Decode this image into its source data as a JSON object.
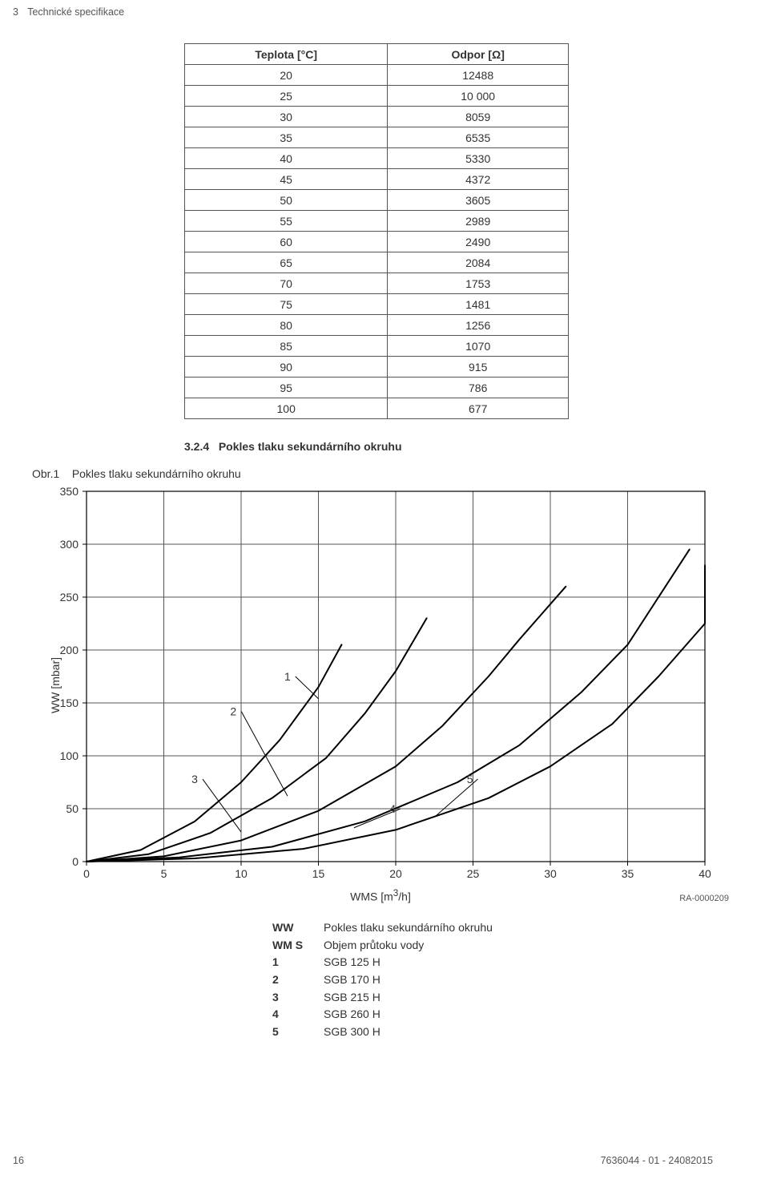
{
  "header": {
    "section_number": "3",
    "section_title": "Technické specifikace"
  },
  "table": {
    "headers": [
      "Teplota [°C]",
      "Odpor [Ω]"
    ],
    "rows": [
      [
        "20",
        "12488"
      ],
      [
        "25",
        "10 000"
      ],
      [
        "30",
        "8059"
      ],
      [
        "35",
        "6535"
      ],
      [
        "40",
        "5330"
      ],
      [
        "45",
        "4372"
      ],
      [
        "50",
        "3605"
      ],
      [
        "55",
        "2989"
      ],
      [
        "60",
        "2490"
      ],
      [
        "65",
        "2084"
      ],
      [
        "70",
        "1753"
      ],
      [
        "75",
        "1481"
      ],
      [
        "80",
        "1256"
      ],
      [
        "85",
        "1070"
      ],
      [
        "90",
        "915"
      ],
      [
        "95",
        "786"
      ],
      [
        "100",
        "677"
      ]
    ]
  },
  "subsection": {
    "number": "3.2.4",
    "title": "Pokles tlaku sekundárního okruhu"
  },
  "figure": {
    "caption_prefix": "Obr.1",
    "caption": "Pokles tlaku sekundárního okruhu",
    "ylabel": "WW [mbar]",
    "xlabel": "WMS [m³/h]",
    "xlabel_parts": [
      "WMS [m",
      "3",
      "/h]"
    ],
    "note": "RA-0000209",
    "chart": {
      "type": "line",
      "xlim": [
        0,
        40
      ],
      "ylim": [
        0,
        350
      ],
      "xtick_step": 5,
      "ytick_step": 50,
      "background_color": "#ffffff",
      "grid_color": "#555555",
      "axis_color": "#000000",
      "tick_fontsize": 14,
      "line_color": "#000000",
      "line_width": 2,
      "series": [
        {
          "id": "1",
          "label": "1",
          "points": [
            [
              0,
              0
            ],
            [
              3.5,
              11
            ],
            [
              7,
              38
            ],
            [
              10,
              75
            ],
            [
              12.5,
              115
            ],
            [
              15,
              165
            ],
            [
              16.5,
              205
            ]
          ]
        },
        {
          "id": "2",
          "label": "2",
          "points": [
            [
              0,
              0
            ],
            [
              4,
              7
            ],
            [
              8,
              27
            ],
            [
              12,
              60
            ],
            [
              15.5,
              98
            ],
            [
              18,
              140
            ],
            [
              20,
              180
            ],
            [
              22,
              230
            ]
          ]
        },
        {
          "id": "3",
          "label": "3",
          "points": [
            [
              0,
              0
            ],
            [
              5,
              5
            ],
            [
              10,
              20
            ],
            [
              15,
              48
            ],
            [
              20,
              90
            ],
            [
              23,
              128
            ],
            [
              26,
              175
            ],
            [
              28,
              210
            ],
            [
              31,
              260
            ]
          ]
        },
        {
          "id": "4",
          "label": "4",
          "points": [
            [
              0,
              0
            ],
            [
              6,
              4
            ],
            [
              12,
              14
            ],
            [
              18,
              38
            ],
            [
              24,
              75
            ],
            [
              28,
              110
            ],
            [
              32,
              160
            ],
            [
              35,
              205
            ],
            [
              39,
              295
            ]
          ]
        },
        {
          "id": "5",
          "label": "5",
          "points": [
            [
              0,
              0
            ],
            [
              7,
              3
            ],
            [
              14,
              12
            ],
            [
              20,
              30
            ],
            [
              26,
              60
            ],
            [
              30,
              90
            ],
            [
              34,
              130
            ],
            [
              37,
              175
            ],
            [
              40,
              225
            ],
            [
              40,
              280
            ]
          ]
        }
      ],
      "callouts": [
        {
          "for": "1",
          "tx": 13.2,
          "ty": 175,
          "ex": 15,
          "ey": 154
        },
        {
          "for": "2",
          "tx": 9.7,
          "ty": 142,
          "ex": 13,
          "ey": 62
        },
        {
          "for": "3",
          "tx": 7.2,
          "ty": 78,
          "ex": 10,
          "ey": 28
        },
        {
          "for": "4",
          "tx": 20,
          "ty": 50,
          "ex": 17.3,
          "ey": 32
        },
        {
          "for": "5",
          "tx": 25,
          "ty": 78,
          "ex": 22.5,
          "ey": 42
        }
      ]
    }
  },
  "legend": {
    "rows": [
      {
        "k": "WW",
        "v": "Pokles tlaku sekundárního okruhu"
      },
      {
        "k": "WM S",
        "v": "Objem průtoku vody"
      },
      {
        "k": "1",
        "v": "SGB 125 H"
      },
      {
        "k": "2",
        "v": "SGB 170 H"
      },
      {
        "k": "3",
        "v": "SGB 215 H"
      },
      {
        "k": "4",
        "v": "SGB 260 H"
      },
      {
        "k": "5",
        "v": "SGB 300 H"
      }
    ]
  },
  "footer": {
    "page_number": "16",
    "doc_id": "7636044 - 01 - 24082015"
  }
}
